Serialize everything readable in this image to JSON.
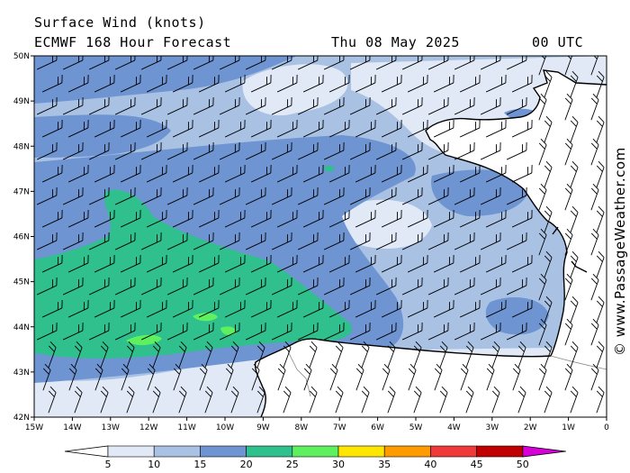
{
  "header": {
    "title": "Surface Wind (knots)",
    "model": "ECMWF 168 Hour Forecast",
    "date": "Thu 08 May 2025",
    "time": "00 UTC"
  },
  "map": {
    "lat_labels": [
      "50N",
      "49N",
      "48N",
      "47N",
      "46N",
      "45N",
      "44N",
      "43N",
      "42N"
    ],
    "lon_labels": [
      "15W",
      "14W",
      "13W",
      "12W",
      "11W",
      "10W",
      "9W",
      "8W",
      "7W",
      "6W",
      "5W",
      "4W",
      "3W",
      "2W",
      "1W",
      "0"
    ],
    "lat_range": [
      42,
      50
    ],
    "lon_range": [
      -15,
      0
    ],
    "land_color": "#ffffff",
    "coast_color": "#000000"
  },
  "colorbar": {
    "labels": [
      "5",
      "10",
      "15",
      "20",
      "25",
      "30",
      "35",
      "40",
      "45",
      "50"
    ],
    "colors": [
      "#e1e9f6",
      "#a9c2e4",
      "#6e94d2",
      "#2fc08d",
      "#5ff060",
      "#ffe600",
      "#ff9a00",
      "#f03a3a",
      "#c00000",
      "#d800d8"
    ]
  },
  "credit": "© www.PassageWeather.com"
}
